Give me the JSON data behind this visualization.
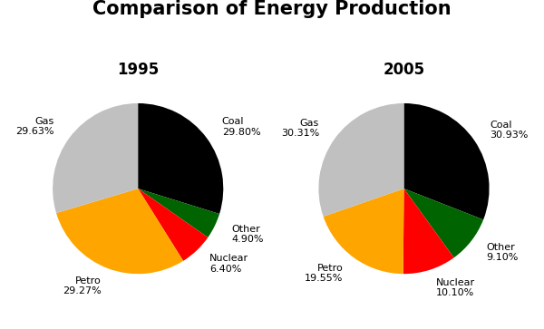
{
  "title": "Comparison of Energy Production",
  "title_fontsize": 15,
  "title_fontweight": "bold",
  "year1": "1995",
  "year2": "2005",
  "year_fontsize": 12,
  "year_fontweight": "bold",
  "year_color": "#000000",
  "labels": [
    "Coal",
    "Other",
    "Nuclear",
    "Petro",
    "Gas"
  ],
  "values_1995": [
    29.8,
    4.9,
    6.4,
    29.27,
    29.63
  ],
  "values_2005": [
    30.93,
    9.1,
    10.1,
    19.55,
    30.31
  ],
  "colors": [
    "#000000",
    "#006400",
    "#ff0000",
    "#ffa500",
    "#c0c0c0"
  ],
  "label_fontsize": 8,
  "startangle": 90,
  "labeldistance": 1.22,
  "background_color": "#ffffff"
}
